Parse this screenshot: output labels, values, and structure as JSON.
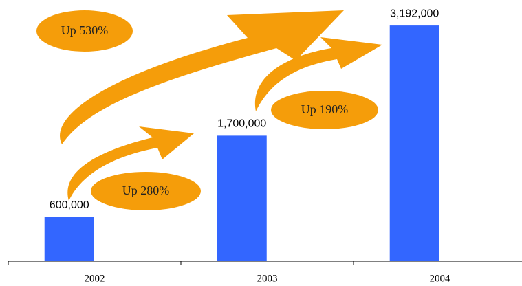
{
  "chart_data": {
    "type": "bar",
    "categories": [
      "2002",
      "2003",
      "2004"
    ],
    "values": [
      600000,
      1700000,
      3192000
    ],
    "value_labels": [
      "600,000",
      "1,700,000",
      "3,192,000"
    ],
    "color": "#3366ff",
    "ylim": [
      0,
      3500000
    ],
    "annotations": [
      "Up 530%",
      "Up 280%",
      "Up 190%"
    ]
  }
}
